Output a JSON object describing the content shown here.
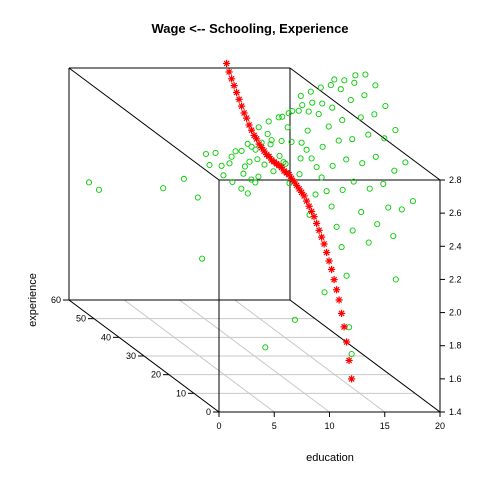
{
  "chart_data": {
    "type": "scatter",
    "title": "Wage <-- Schooling, Experience",
    "xlabel": "education",
    "ylabel": "experience",
    "zlabel": "",
    "xlim": [
      0,
      20
    ],
    "ylim": [
      0,
      60
    ],
    "zlim": [
      1.4,
      2.8
    ],
    "xticks": [
      0,
      5,
      10,
      15,
      20
    ],
    "yticks": [
      0,
      10,
      20,
      30,
      40,
      50,
      60
    ],
    "zticks": [
      1.4,
      1.6,
      1.8,
      2.0,
      2.2,
      2.4,
      2.6,
      2.8
    ],
    "grid": true,
    "colors": {
      "observed": "#00cc00",
      "fitted": "#ff0000"
    },
    "series": [
      {
        "marker": "circle",
        "color": "#00cc00",
        "points": [
          {
            "x": 6,
            "y": 12,
            "z": 2.65
          },
          {
            "x": 6,
            "y": 15,
            "z": 2.55
          },
          {
            "x": 7,
            "y": 18,
            "z": 2.6
          },
          {
            "x": 7,
            "y": 22,
            "z": 2.5
          },
          {
            "x": 8,
            "y": 20,
            "z": 2.7
          },
          {
            "x": 8,
            "y": 25,
            "z": 2.6
          },
          {
            "x": 8,
            "y": 30,
            "z": 2.45
          },
          {
            "x": 9,
            "y": 14,
            "z": 2.75
          },
          {
            "x": 9,
            "y": 18,
            "z": 2.65
          },
          {
            "x": 9,
            "y": 24,
            "z": 2.55
          },
          {
            "x": 9,
            "y": 30,
            "z": 2.5
          },
          {
            "x": 9,
            "y": 38,
            "z": 2.4
          },
          {
            "x": 10,
            "y": 8,
            "z": 2.5
          },
          {
            "x": 10,
            "y": 12,
            "z": 2.7
          },
          {
            "x": 10,
            "y": 16,
            "z": 2.6
          },
          {
            "x": 10,
            "y": 20,
            "z": 2.72
          },
          {
            "x": 10,
            "y": 26,
            "z": 2.6
          },
          {
            "x": 10,
            "y": 32,
            "z": 2.55
          },
          {
            "x": 10,
            "y": 40,
            "z": 2.45
          },
          {
            "x": 10,
            "y": 48,
            "z": 2.35
          },
          {
            "x": 11,
            "y": 10,
            "z": 2.6
          },
          {
            "x": 11,
            "y": 16,
            "z": 2.75
          },
          {
            "x": 11,
            "y": 22,
            "z": 2.65
          },
          {
            "x": 11,
            "y": 28,
            "z": 2.7
          },
          {
            "x": 11,
            "y": 34,
            "z": 2.6
          },
          {
            "x": 11,
            "y": 42,
            "z": 2.5
          },
          {
            "x": 11,
            "y": 50,
            "z": 2.4
          },
          {
            "x": 12,
            "y": 2,
            "z": 2.2
          },
          {
            "x": 12,
            "y": 4,
            "z": 2.35
          },
          {
            "x": 12,
            "y": 6,
            "z": 2.45
          },
          {
            "x": 12,
            "y": 8,
            "z": 2.55
          },
          {
            "x": 12,
            "y": 10,
            "z": 2.62
          },
          {
            "x": 12,
            "y": 12,
            "z": 2.68
          },
          {
            "x": 12,
            "y": 14,
            "z": 2.72
          },
          {
            "x": 12,
            "y": 16,
            "z": 2.75
          },
          {
            "x": 12,
            "y": 18,
            "z": 2.78
          },
          {
            "x": 12,
            "y": 20,
            "z": 2.8
          },
          {
            "x": 12,
            "y": 24,
            "z": 2.76
          },
          {
            "x": 12,
            "y": 28,
            "z": 2.72
          },
          {
            "x": 12,
            "y": 32,
            "z": 2.68
          },
          {
            "x": 12,
            "y": 36,
            "z": 2.62
          },
          {
            "x": 12,
            "y": 40,
            "z": 2.55
          },
          {
            "x": 12,
            "y": 44,
            "z": 2.48
          },
          {
            "x": 12,
            "y": 48,
            "z": 2.4
          },
          {
            "x": 12,
            "y": 52,
            "z": 2.3
          },
          {
            "x": 13,
            "y": 4,
            "z": 2.45
          },
          {
            "x": 13,
            "y": 8,
            "z": 2.65
          },
          {
            "x": 13,
            "y": 12,
            "z": 2.75
          },
          {
            "x": 13,
            "y": 16,
            "z": 2.82
          },
          {
            "x": 13,
            "y": 22,
            "z": 2.85
          },
          {
            "x": 13,
            "y": 30,
            "z": 2.78
          },
          {
            "x": 13,
            "y": 38,
            "z": 2.65
          },
          {
            "x": 13,
            "y": 46,
            "z": 2.5
          },
          {
            "x": 14,
            "y": 2,
            "z": 2.4
          },
          {
            "x": 14,
            "y": 5,
            "z": 2.55
          },
          {
            "x": 14,
            "y": 8,
            "z": 2.7
          },
          {
            "x": 14,
            "y": 11,
            "z": 2.8
          },
          {
            "x": 14,
            "y": 14,
            "z": 2.88
          },
          {
            "x": 14,
            "y": 18,
            "z": 2.92
          },
          {
            "x": 14,
            "y": 22,
            "z": 2.95
          },
          {
            "x": 14,
            "y": 26,
            "z": 2.92
          },
          {
            "x": 14,
            "y": 30,
            "z": 2.88
          },
          {
            "x": 14,
            "y": 34,
            "z": 2.82
          },
          {
            "x": 14,
            "y": 38,
            "z": 2.75
          },
          {
            "x": 14,
            "y": 42,
            "z": 2.68
          },
          {
            "x": 14,
            "y": 46,
            "z": 2.6
          },
          {
            "x": 15,
            "y": 3,
            "z": 2.5
          },
          {
            "x": 15,
            "y": 6,
            "z": 2.68
          },
          {
            "x": 15,
            "y": 9,
            "z": 2.8
          },
          {
            "x": 15,
            "y": 13,
            "z": 2.9
          },
          {
            "x": 15,
            "y": 17,
            "z": 2.97
          },
          {
            "x": 15,
            "y": 21,
            "z": 3.0
          },
          {
            "x": 15,
            "y": 25,
            "z": 2.98
          },
          {
            "x": 15,
            "y": 29,
            "z": 2.94
          },
          {
            "x": 15,
            "y": 33,
            "z": 2.88
          },
          {
            "x": 15,
            "y": 37,
            "z": 2.8
          },
          {
            "x": 15,
            "y": 41,
            "z": 2.72
          },
          {
            "x": 16,
            "y": 1,
            "z": 2.45
          },
          {
            "x": 16,
            "y": 3,
            "z": 2.6
          },
          {
            "x": 16,
            "y": 5,
            "z": 2.72
          },
          {
            "x": 16,
            "y": 8,
            "z": 2.85
          },
          {
            "x": 16,
            "y": 11,
            "z": 2.95
          },
          {
            "x": 16,
            "y": 14,
            "z": 3.02
          },
          {
            "x": 16,
            "y": 18,
            "z": 3.08
          },
          {
            "x": 16,
            "y": 22,
            "z": 3.1
          },
          {
            "x": 16,
            "y": 26,
            "z": 3.08
          },
          {
            "x": 16,
            "y": 30,
            "z": 3.02
          },
          {
            "x": 16,
            "y": 34,
            "z": 2.95
          },
          {
            "x": 16,
            "y": 38,
            "z": 2.88
          },
          {
            "x": 17,
            "y": 2,
            "z": 2.6
          },
          {
            "x": 17,
            "y": 5,
            "z": 2.8
          },
          {
            "x": 17,
            "y": 9,
            "z": 2.95
          },
          {
            "x": 17,
            "y": 13,
            "z": 3.05
          },
          {
            "x": 17,
            "y": 17,
            "z": 3.12
          },
          {
            "x": 17,
            "y": 21,
            "z": 3.15
          },
          {
            "x": 17,
            "y": 25,
            "z": 3.12
          },
          {
            "x": 17,
            "y": 29,
            "z": 3.08
          },
          {
            "x": 18,
            "y": 2,
            "z": 2.65
          },
          {
            "x": 18,
            "y": 5,
            "z": 2.85
          },
          {
            "x": 18,
            "y": 9,
            "z": 3.0
          },
          {
            "x": 18,
            "y": 13,
            "z": 3.1
          },
          {
            "x": 18,
            "y": 17,
            "z": 3.18
          },
          {
            "x": 18,
            "y": 21,
            "z": 3.2
          },
          {
            "x": 18,
            "y": 25,
            "z": 3.15
          },
          {
            "x": 6,
            "y": 8,
            "z": 1.7
          },
          {
            "x": 8,
            "y": 5,
            "z": 1.9
          },
          {
            "x": 12,
            "y": 1,
            "z": 1.9
          },
          {
            "x": 10,
            "y": 2,
            "z": 2.1
          },
          {
            "x": 12,
            "y": 0,
            "z": 1.75
          },
          {
            "x": 16,
            "y": 0,
            "z": 2.2
          },
          {
            "x": 3,
            "y": 20,
            "z": 2.1
          },
          {
            "x": 4,
            "y": 40,
            "z": 2.3
          },
          {
            "x": 6,
            "y": 35,
            "z": 2.3
          },
          {
            "x": 9,
            "y": 45,
            "z": 2.45
          },
          {
            "x": 7,
            "y": 45,
            "z": 2.3
          },
          {
            "x": 0,
            "y": 48,
            "z": 2.2
          },
          {
            "x": 0,
            "y": 52,
            "z": 2.2
          }
        ]
      },
      {
        "marker": "asterisk",
        "color": "#ff0000",
        "points": [
          {
            "x": 12,
            "y": 0,
            "z": 1.6
          },
          {
            "x": 12,
            "y": 1,
            "z": 1.7
          },
          {
            "x": 12,
            "y": 2,
            "z": 1.8
          },
          {
            "x": 12,
            "y": 3,
            "z": 1.88
          },
          {
            "x": 12,
            "y": 4,
            "z": 1.95
          },
          {
            "x": 12,
            "y": 5,
            "z": 2.02
          },
          {
            "x": 12,
            "y": 6,
            "z": 2.07
          },
          {
            "x": 12,
            "y": 7,
            "z": 2.12
          },
          {
            "x": 12,
            "y": 8,
            "z": 2.17
          },
          {
            "x": 12,
            "y": 9,
            "z": 2.21
          },
          {
            "x": 12,
            "y": 10,
            "z": 2.25
          },
          {
            "x": 12,
            "y": 11,
            "z": 2.29
          },
          {
            "x": 12,
            "y": 12,
            "z": 2.32
          },
          {
            "x": 12,
            "y": 13,
            "z": 2.35
          },
          {
            "x": 12,
            "y": 14,
            "z": 2.38
          },
          {
            "x": 12,
            "y": 15,
            "z": 2.41
          },
          {
            "x": 12,
            "y": 16,
            "z": 2.43
          },
          {
            "x": 12,
            "y": 17,
            "z": 2.45
          },
          {
            "x": 12,
            "y": 18,
            "z": 2.47
          },
          {
            "x": 12,
            "y": 19,
            "z": 2.49
          },
          {
            "x": 12,
            "y": 20,
            "z": 2.5
          },
          {
            "x": 12,
            "y": 21,
            "z": 2.51
          },
          {
            "x": 12,
            "y": 22,
            "z": 2.52
          },
          {
            "x": 12,
            "y": 23,
            "z": 2.53
          },
          {
            "x": 12,
            "y": 24,
            "z": 2.54
          },
          {
            "x": 12,
            "y": 25,
            "z": 2.55
          },
          {
            "x": 12,
            "y": 26,
            "z": 2.55
          },
          {
            "x": 12,
            "y": 27,
            "z": 2.55
          },
          {
            "x": 12,
            "y": 28,
            "z": 2.56
          },
          {
            "x": 12,
            "y": 29,
            "z": 2.56
          },
          {
            "x": 12,
            "y": 30,
            "z": 2.56
          },
          {
            "x": 12,
            "y": 31,
            "z": 2.56
          },
          {
            "x": 12,
            "y": 32,
            "z": 2.56
          },
          {
            "x": 12,
            "y": 33,
            "z": 2.57
          },
          {
            "x": 12,
            "y": 34,
            "z": 2.57
          },
          {
            "x": 12,
            "y": 35,
            "z": 2.58
          },
          {
            "x": 12,
            "y": 36,
            "z": 2.59
          },
          {
            "x": 12,
            "y": 37,
            "z": 2.6
          },
          {
            "x": 12,
            "y": 38,
            "z": 2.62
          },
          {
            "x": 12,
            "y": 39,
            "z": 2.63
          },
          {
            "x": 12,
            "y": 40,
            "z": 2.65
          },
          {
            "x": 12,
            "y": 41,
            "z": 2.67
          },
          {
            "x": 12,
            "y": 42,
            "z": 2.7
          },
          {
            "x": 12,
            "y": 43,
            "z": 2.72
          },
          {
            "x": 12,
            "y": 44,
            "z": 2.75
          },
          {
            "x": 12,
            "y": 45,
            "z": 2.78
          },
          {
            "x": 12,
            "y": 46,
            "z": 2.81
          },
          {
            "x": 12,
            "y": 47,
            "z": 2.84
          },
          {
            "x": 12,
            "y": 48,
            "z": 2.87
          },
          {
            "x": 12,
            "y": 49,
            "z": 2.9
          },
          {
            "x": 12,
            "y": 50,
            "z": 2.94
          }
        ]
      }
    ]
  }
}
